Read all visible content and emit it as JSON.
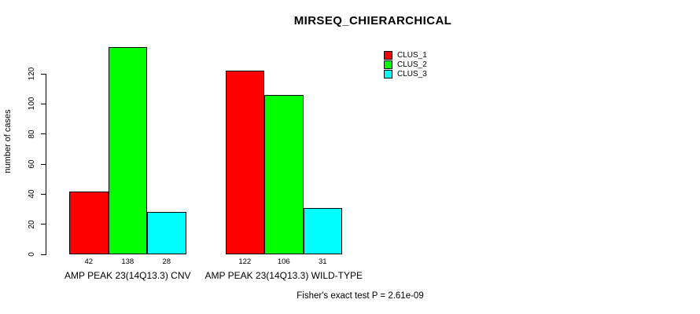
{
  "chart_data": {
    "type": "bar",
    "title": "MIRSEQ_CHIERARCHICAL",
    "ylabel": "number of cases",
    "xlabel": "",
    "categories": [
      "AMP PEAK 23(14Q13.3) CNV",
      "AMP PEAK 23(14Q13.3) WILD-TYPE"
    ],
    "series": [
      {
        "name": "CLUS_1",
        "color": "#ff0000",
        "values": [
          42,
          122
        ]
      },
      {
        "name": "CLUS_2",
        "color": "#00ff00",
        "values": [
          138,
          106
        ]
      },
      {
        "name": "CLUS_3",
        "color": "#00ffff",
        "values": [
          28,
          31
        ]
      }
    ],
    "y_ticks": [
      0,
      20,
      40,
      60,
      80,
      100,
      120
    ],
    "ylim": [
      0,
      138
    ],
    "grid": false,
    "legend_position": "top-right",
    "bar_border_color": "#000000",
    "background_color": "#ffffff",
    "annotation": "Fisher's exact test P = 2.61e-09"
  }
}
